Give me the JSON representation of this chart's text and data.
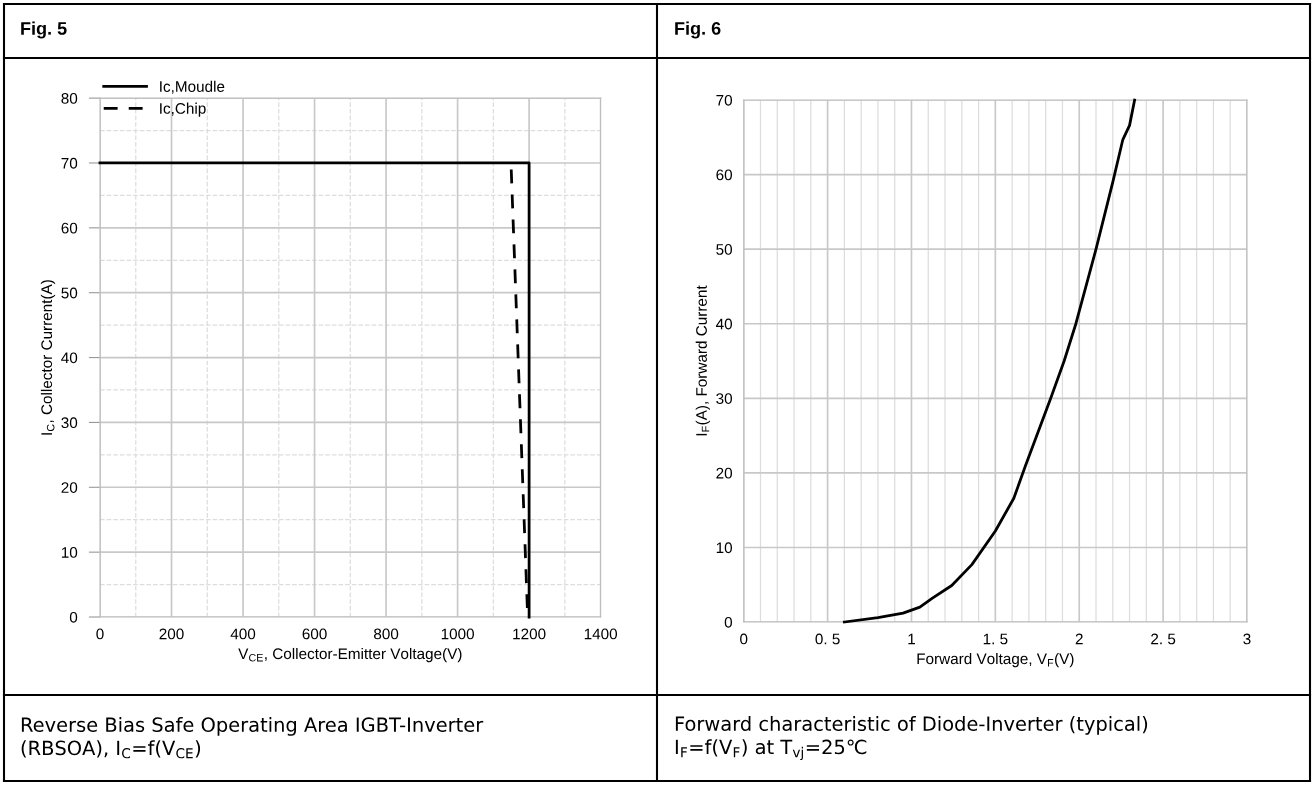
{
  "chart_data": [
    {
      "type": "line",
      "title": "Fig. 5",
      "xlabel": "V$_{CE}$, Collector-Emitter Voltage(V)",
      "ylabel": "I$_{C}$, Collector Current(A)",
      "annotations": [
        "Reverse Bias Safe Operating Area IGBT-Inverter\n(RBSOA), I$_{C}$=f(V$_{CE}$)"
      ],
      "series": [
        {
          "name": "Ic,Moudle",
          "color": "#000000",
          "line_style": "solid",
          "x": [
            0,
            1200,
            1200
          ],
          "values": [
            70,
            70,
            0
          ]
        },
        {
          "name": "Ic,Chip",
          "color": "#000000",
          "line_style": "dashed",
          "x": [
            1150,
            1196
          ],
          "values": [
            69,
            0
          ]
        }
      ],
      "xlim": [
        0,
        1400
      ],
      "xticks": [
        0,
        200,
        400,
        600,
        800,
        1000,
        1200,
        1400
      ],
      "ylim": [
        0,
        80
      ],
      "yticks": [
        0,
        10,
        20,
        30,
        40,
        50,
        60,
        70,
        80
      ],
      "grid": true,
      "legend": "top left"
    },
    {
      "type": "line",
      "title": "Fig. 6",
      "xlabel": "Forward Voltage, V$_{F}$(V)",
      "ylabel": "I$_{F}$(A), Forward Current",
      "annotations": [
        "Forward characteristic of Diode-Inverter (typical)\nI$_{F}$=f(V$_{F}$) at T$_{vj}$=25℃"
      ],
      "series": [
        {
          "color": "#000000",
          "x": [
            0.6,
            0.8,
            0.95,
            1.05,
            1.125,
            1.24,
            1.36,
            1.5,
            1.61,
            1.68,
            1.83,
            1.91,
            1.98,
            2.1,
            2.2,
            2.26,
            2.3,
            2.33
          ],
          "values": [
            0,
            0.6,
            1.2,
            2,
            3.2,
            4.9,
            7.7,
            12.2,
            16.6,
            21,
            30,
            35,
            40,
            50,
            59,
            64.7,
            66.6,
            70
          ]
        }
      ],
      "xlim": [
        0,
        3
      ],
      "xticks": [
        0,
        {
          "value": 0.5,
          "label": "0. 5"
        },
        1,
        {
          "value": 1.5,
          "label": "1. 5"
        },
        2,
        {
          "value": 2.5,
          "label": "2. 5"
        },
        3
      ],
      "ylim": [
        0,
        70
      ],
      "yticks": [
        0,
        10,
        20,
        30,
        40,
        50,
        60,
        70
      ],
      "grid": true
    }
  ]
}
